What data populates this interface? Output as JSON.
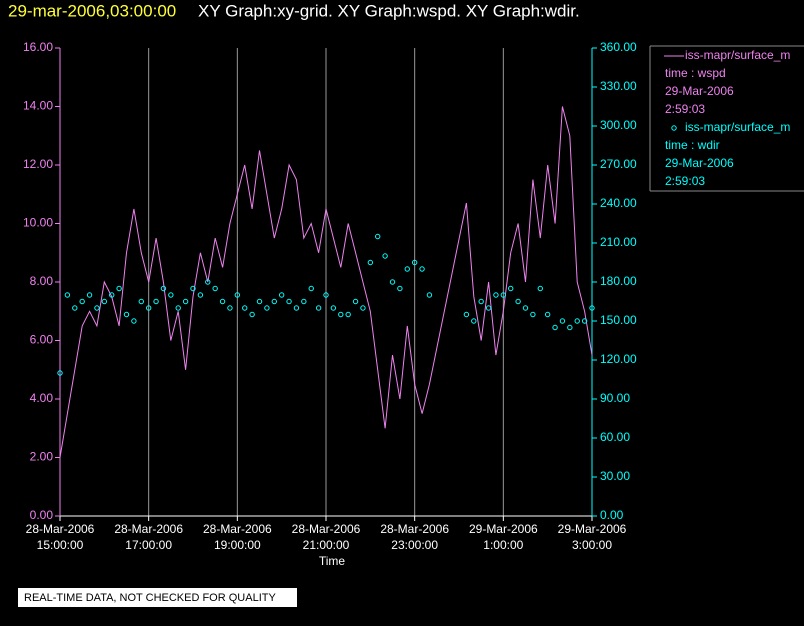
{
  "chart_data": {
    "type": "combo",
    "title": "29-mar-2006,03:00:00",
    "subtitle": "XY Graph:xy-grid.  XY Graph:wspd.  XY Graph:wdir.",
    "x_label": "Time",
    "note": "REAL-TIME DATA, NOT CHECKED FOR QUALITY",
    "grid": true,
    "x": [
      "2006-03-28T15:00",
      "2006-03-28T15:10",
      "2006-03-28T15:20",
      "2006-03-28T15:30",
      "2006-03-28T15:40",
      "2006-03-28T15:50",
      "2006-03-28T16:00",
      "2006-03-28T16:10",
      "2006-03-28T16:20",
      "2006-03-28T16:30",
      "2006-03-28T16:40",
      "2006-03-28T16:50",
      "2006-03-28T17:00",
      "2006-03-28T17:10",
      "2006-03-28T17:20",
      "2006-03-28T17:30",
      "2006-03-28T17:40",
      "2006-03-28T17:50",
      "2006-03-28T18:00",
      "2006-03-28T18:10",
      "2006-03-28T18:20",
      "2006-03-28T18:30",
      "2006-03-28T18:40",
      "2006-03-28T18:50",
      "2006-03-28T19:00",
      "2006-03-28T19:10",
      "2006-03-28T19:20",
      "2006-03-28T19:30",
      "2006-03-28T19:40",
      "2006-03-28T19:50",
      "2006-03-28T20:00",
      "2006-03-28T20:10",
      "2006-03-28T20:20",
      "2006-03-28T20:30",
      "2006-03-28T20:40",
      "2006-03-28T20:50",
      "2006-03-28T21:00",
      "2006-03-28T21:10",
      "2006-03-28T21:20",
      "2006-03-28T21:30",
      "2006-03-28T21:40",
      "2006-03-28T21:50",
      "2006-03-28T22:00",
      "2006-03-28T22:10",
      "2006-03-28T22:20",
      "2006-03-28T22:30",
      "2006-03-28T22:40",
      "2006-03-28T22:50",
      "2006-03-28T23:00",
      "2006-03-28T23:10",
      "2006-03-28T23:20",
      "2006-03-29T00:10",
      "2006-03-29T00:20",
      "2006-03-29T00:30",
      "2006-03-29T00:40",
      "2006-03-29T00:50",
      "2006-03-29T01:00",
      "2006-03-29T01:10",
      "2006-03-29T01:20",
      "2006-03-29T01:30",
      "2006-03-29T01:40",
      "2006-03-29T01:50",
      "2006-03-29T02:00",
      "2006-03-29T02:10",
      "2006-03-29T02:20",
      "2006-03-29T02:30",
      "2006-03-29T02:40",
      "2006-03-29T02:50",
      "2006-03-29T03:00"
    ],
    "xlim": [
      "2006-03-28T15:00",
      "2006-03-29T03:00"
    ],
    "xticks": [
      {
        "value": "2006-03-28T15:00",
        "label": [
          "28-Mar-2006",
          "15:00:00"
        ]
      },
      {
        "value": "2006-03-28T17:00",
        "label": [
          "28-Mar-2006",
          "17:00:00"
        ]
      },
      {
        "value": "2006-03-28T19:00",
        "label": [
          "28-Mar-2006",
          "19:00:00"
        ]
      },
      {
        "value": "2006-03-28T21:00",
        "label": [
          "28-Mar-2006",
          "21:00:00"
        ]
      },
      {
        "value": "2006-03-28T23:00",
        "label": [
          "28-Mar-2006",
          "23:00:00"
        ]
      },
      {
        "value": "2006-03-29T01:00",
        "label": [
          "29-Mar-2006",
          "1:00:00"
        ]
      },
      {
        "value": "2006-03-29T03:00",
        "label": [
          "29-Mar-2006",
          "3:00:00"
        ]
      }
    ],
    "ylim": [
      0,
      16
    ],
    "yticks": [
      {
        "value": 0,
        "label": "0.00"
      },
      {
        "value": 2,
        "label": "2.00"
      },
      {
        "value": 4,
        "label": "4.00"
      },
      {
        "value": 6,
        "label": "6.00"
      },
      {
        "value": 8,
        "label": "8.00"
      },
      {
        "value": 10,
        "label": "10.00"
      },
      {
        "value": 12,
        "label": "12.00"
      },
      {
        "value": 14,
        "label": "14.00"
      },
      {
        "value": 16,
        "label": "16.00"
      }
    ],
    "y2lim": [
      0,
      360
    ],
    "y2ticks": [
      {
        "value": 0,
        "label": "0.00"
      },
      {
        "value": 30,
        "label": "30.00"
      },
      {
        "value": 60,
        "label": "60.00"
      },
      {
        "value": 90,
        "label": "90.00"
      },
      {
        "value": 120,
        "label": "120.00"
      },
      {
        "value": 150,
        "label": "150.00"
      },
      {
        "value": 180,
        "label": "180.00"
      },
      {
        "value": 210,
        "label": "210.00"
      },
      {
        "value": 240,
        "label": "240.00"
      },
      {
        "value": 270,
        "label": "270.00"
      },
      {
        "value": 300,
        "label": "300.00"
      },
      {
        "value": 330,
        "label": "330.00"
      },
      {
        "value": 360,
        "label": "360.00"
      }
    ],
    "series": [
      {
        "name": "iss-mapr/surface_m",
        "type": "line",
        "color": "#ee82ee",
        "axis": "y",
        "legend_lines": [
          "time : wspd",
          "29-Mar-2006",
          "2:59:03"
        ],
        "values": [
          2,
          3.5,
          5,
          6.5,
          7,
          6.5,
          8,
          7.5,
          6.5,
          9,
          10.5,
          9,
          8,
          9.5,
          8,
          6,
          7,
          5,
          7.5,
          9,
          8,
          9.5,
          8.5,
          10,
          11,
          12,
          10.5,
          12.5,
          11,
          9.5,
          10.5,
          12,
          11.5,
          9.5,
          10,
          9,
          10.5,
          9.5,
          8.5,
          10,
          9,
          8,
          7,
          5,
          3,
          5.5,
          4,
          6.5,
          4.5,
          3.5,
          4.5,
          10.7,
          7.5,
          6,
          8,
          5.5,
          7,
          9,
          10,
          8,
          11.5,
          9.5,
          12,
          10,
          14,
          13,
          8,
          7,
          5.5
        ]
      },
      {
        "name": "iss-mapr/surface_m",
        "type": "scatter",
        "color": "#00ffff",
        "axis": "y2",
        "legend_lines": [
          "time : wdir",
          "29-Mar-2006",
          "2:59:03"
        ],
        "values": [
          110,
          170,
          160,
          165,
          170,
          160,
          165,
          170,
          175,
          155,
          150,
          165,
          160,
          165,
          175,
          170,
          160,
          165,
          175,
          170,
          180,
          175,
          165,
          160,
          170,
          160,
          155,
          165,
          160,
          165,
          170,
          165,
          160,
          165,
          175,
          160,
          170,
          160,
          155,
          155,
          165,
          160,
          195,
          215,
          200,
          180,
          175,
          190,
          195,
          190,
          170,
          155,
          150,
          165,
          160,
          170,
          170,
          175,
          165,
          160,
          155,
          175,
          155,
          145,
          150,
          145,
          150,
          150,
          160
        ]
      }
    ]
  }
}
